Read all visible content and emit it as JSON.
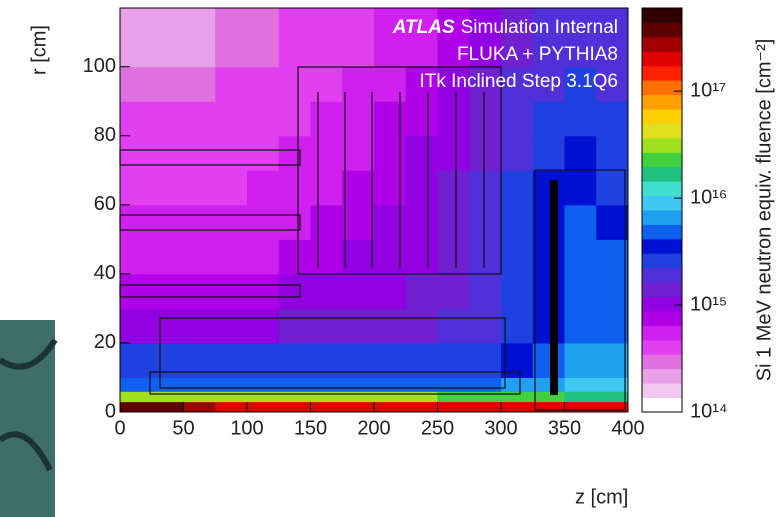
{
  "chart_data": {
    "type": "heatmap",
    "annotations": [
      "ATLAS",
      "Simulation Internal",
      "FLUKA + PYTHIA8",
      "ITk Inclined Step 3.1Q6"
    ],
    "xlabel": "z [cm]",
    "ylabel": "r [cm]",
    "colorbar_label": "Si 1 MeV neutron equiv. fluence [cm⁻²]",
    "xlim": [
      0,
      400
    ],
    "ylim": [
      0,
      117
    ],
    "xticks": [
      0,
      50,
      100,
      150,
      200,
      250,
      300,
      350,
      400
    ],
    "yticks": [
      0,
      20,
      40,
      60,
      80,
      100
    ],
    "xbins": [
      0,
      25,
      50,
      75,
      100,
      125,
      150,
      175,
      200,
      225,
      250,
      275,
      300,
      325,
      350,
      375,
      400
    ],
    "ybins": [
      0,
      3,
      6,
      10,
      20,
      30,
      40,
      50,
      60,
      70,
      80,
      90,
      100,
      117
    ],
    "zlim": [
      100000000000000.0,
      6e+17
    ],
    "zlog": true,
    "zticks": [
      {
        "value": 100000000000000.0,
        "label": "10¹⁴"
      },
      {
        "value": 1000000000000000.0,
        "label": "10¹⁵"
      },
      {
        "value": 1e+16,
        "label": "10¹⁶"
      },
      {
        "value": 1e+17,
        "label": "10¹⁷"
      }
    ],
    "colormap": [
      "#ffffff",
      "#f0c8f0",
      "#e8a0e8",
      "#e070e0",
      "#e040f0",
      "#d020f0",
      "#b000e8",
      "#9000e0",
      "#7020d0",
      "#5030d8",
      "#2040e0",
      "#0010d0",
      "#1060f0",
      "#20a0f0",
      "#40c8f0",
      "#40e0d0",
      "#20c080",
      "#40d040",
      "#a0e020",
      "#e0e020",
      "#ffd000",
      "#ffa000",
      "#ff7000",
      "#ff2000",
      "#e00000",
      "#a00000",
      "#600000",
      "#300000"
    ],
    "values": [
      [
        4e+17,
        4e+17,
        3e+17,
        2e+17,
        2e+17,
        2e+17,
        2e+17,
        2e+17,
        2e+17,
        2e+17,
        2e+17,
        2e+17,
        2e+17,
        2e+17,
        2e+17,
        2e+17
      ],
      [
        3e+16,
        3e+16,
        3e+16,
        3e+16,
        3e+16,
        3e+16,
        3e+16,
        3e+16,
        3e+16,
        3e+16,
        2e+16,
        2e+16,
        2e+16,
        2e+16,
        1.5e+16,
        1.5e+16
      ],
      [
        5000000000000000.0,
        5000000000000000.0,
        5000000000000000.0,
        5000000000000000.0,
        5000000000000000.0,
        5000000000000000.0,
        5000000000000000.0,
        5000000000000000.0,
        5000000000000000.0,
        5000000000000000.0,
        5000000000000000.0,
        5000000000000000.0,
        6000000000000000.0,
        6000000000000000.0,
        8000000000000000.0,
        8000000000000000.0
      ],
      [
        2500000000000000.0,
        2500000000000000.0,
        2500000000000000.0,
        2500000000000000.0,
        2500000000000000.0,
        2500000000000000.0,
        2500000000000000.0,
        2500000000000000.0,
        2500000000000000.0,
        2500000000000000.0,
        2500000000000000.0,
        3000000000000000.0,
        4000000000000000.0,
        5000000000000000.0,
        6000000000000000.0,
        6000000000000000.0
      ],
      [
        1200000000000000.0,
        1200000000000000.0,
        1200000000000000.0,
        1200000000000000.0,
        1200000000000000.0,
        1300000000000000.0,
        1300000000000000.0,
        1400000000000000.0,
        1500000000000000.0,
        1600000000000000.0,
        1800000000000000.0,
        2000000000000000.0,
        3000000000000000.0,
        4000000000000000.0,
        5000000000000000.0,
        5000000000000000.0
      ],
      [
        800000000000000.0,
        800000000000000.0,
        800000000000000.0,
        800000000000000.0,
        800000000000000.0,
        900000000000000.0,
        1000000000000000.0,
        1100000000000000.0,
        1200000000000000.0,
        1400000000000000.0,
        1600000000000000.0,
        2000000000000000.0,
        3000000000000000.0,
        4000000000000000.0,
        5000000000000000.0,
        5000000000000000.0
      ],
      [
        600000000000000.0,
        600000000000000.0,
        600000000000000.0,
        600000000000000.0,
        600000000000000.0,
        700000000000000.0,
        800000000000000.0,
        900000000000000.0,
        1000000000000000.0,
        1200000000000000.0,
        1500000000000000.0,
        2000000000000000.0,
        3000000000000000.0,
        4000000000000000.0,
        5000000000000000.0,
        5000000000000000.0
      ],
      [
        500000000000000.0,
        500000000000000.0,
        500000000000000.0,
        500000000000000.0,
        500000000000000.0,
        600000000000000.0,
        700000000000000.0,
        800000000000000.0,
        900000000000000.0,
        1100000000000000.0,
        1400000000000000.0,
        2000000000000000.0,
        3000000000000000.0,
        4000000000000000.0,
        5000000000000000.0,
        4000000000000000.0
      ],
      [
        450000000000000.0,
        450000000000000.0,
        450000000000000.0,
        450000000000000.0,
        500000000000000.0,
        550000000000000.0,
        600000000000000.0,
        700000000000000.0,
        800000000000000.0,
        1000000000000000.0,
        1300000000000000.0,
        1800000000000000.0,
        2500000000000000.0,
        3500000000000000.0,
        4000000000000000.0,
        3000000000000000.0
      ],
      [
        400000000000000.0,
        400000000000000.0,
        400000000000000.0,
        400000000000000.0,
        450000000000000.0,
        500000000000000.0,
        550000000000000.0,
        600000000000000.0,
        700000000000000.0,
        900000000000000.0,
        1200000000000000.0,
        1600000000000000.0,
        2200000000000000.0,
        3000000000000000.0,
        3500000000000000.0,
        3000000000000000.0
      ],
      [
        350000000000000.0,
        350000000000000.0,
        350000000000000.0,
        400000000000000.0,
        400000000000000.0,
        450000000000000.0,
        500000000000000.0,
        550000000000000.0,
        650000000000000.0,
        800000000000000.0,
        1100000000000000.0,
        1400000000000000.0,
        2000000000000000.0,
        2500000000000000.0,
        3000000000000000.0,
        2500000000000000.0
      ],
      [
        300000000000000.0,
        300000000000000.0,
        300000000000000.0,
        350000000000000.0,
        350000000000000.0,
        400000000000000.0,
        450000000000000.0,
        500000000000000.0,
        600000000000000.0,
        700000000000000.0,
        1000000000000000.0,
        1300000000000000.0,
        1800000000000000.0,
        2000000000000000.0,
        2500000000000000.0,
        2000000000000000.0
      ],
      [
        200000000000000.0,
        200000000000000.0,
        250000000000000.0,
        300000000000000.0,
        300000000000000.0,
        350000000000000.0,
        400000000000000.0,
        450000000000000.0,
        500000000000000.0,
        600000000000000.0,
        800000000000000.0,
        1100000000000000.0,
        1500000000000000.0,
        1800000000000000.0,
        2000000000000000.0,
        1800000000000000.0
      ]
    ]
  }
}
